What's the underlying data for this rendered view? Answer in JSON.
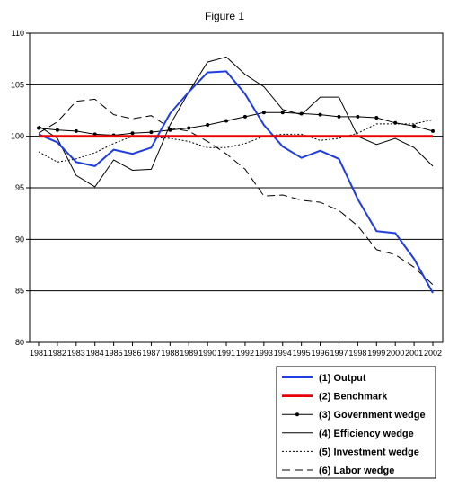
{
  "chart_data": {
    "type": "line",
    "title": "Figure 1",
    "xlabel": "",
    "ylabel": "",
    "ylim": [
      80,
      110
    ],
    "yticks": [
      "80",
      "85",
      "90",
      "95",
      "100",
      "105",
      "110"
    ],
    "grid": "horizontal",
    "legend_position": "bottom-right",
    "x": [
      "1981",
      "1982",
      "1983",
      "1984",
      "1985",
      "1986",
      "1987",
      "1988",
      "1989",
      "1990",
      "1991",
      "1992",
      "1993",
      "1994",
      "1995",
      "1996",
      "1997",
      "1998",
      "1999",
      "2000",
      "2001",
      "2002"
    ],
    "series": [
      {
        "name": "(1) Output",
        "color": "#1f3de0",
        "style": "solid",
        "values": [
          100.2,
          99.4,
          97.5,
          97.1,
          98.7,
          98.3,
          98.9,
          102.2,
          104.3,
          106.2,
          106.3,
          104.1,
          101.1,
          99.0,
          97.9,
          98.6,
          97.8,
          93.9,
          90.8,
          90.6,
          88.1,
          84.8
        ]
      },
      {
        "name": "(2) Benchmark",
        "color": "#e80000",
        "style": "thick",
        "values": [
          100,
          100,
          100,
          100,
          100,
          100,
          100,
          100,
          100,
          100,
          100,
          100,
          100,
          100,
          100,
          100,
          100,
          100,
          100,
          100,
          100,
          100
        ]
      },
      {
        "name": "(3) Government wedge",
        "color": "#000000",
        "style": "marker",
        "values": [
          100.8,
          100.6,
          100.5,
          100.2,
          100.1,
          100.3,
          100.4,
          100.6,
          100.8,
          101.1,
          101.5,
          101.9,
          102.3,
          102.3,
          102.2,
          102.1,
          101.9,
          101.9,
          101.8,
          101.3,
          101.0,
          100.5
        ]
      },
      {
        "name": "(4) Efficiency wedge",
        "color": "#000000",
        "style": "solid",
        "values": [
          101.0,
          99.8,
          96.2,
          95.1,
          97.7,
          96.7,
          96.8,
          101.1,
          104.3,
          107.2,
          107.7,
          106.0,
          104.8,
          102.6,
          102.1,
          103.8,
          103.8,
          100.0,
          99.2,
          99.8,
          98.9,
          97.1
        ]
      },
      {
        "name": "(5) Investment wedge",
        "color": "#000000",
        "style": "dotted",
        "values": [
          98.5,
          97.5,
          97.8,
          98.4,
          99.3,
          100.0,
          99.9,
          99.8,
          99.5,
          98.9,
          98.9,
          99.3,
          100.0,
          100.2,
          100.2,
          99.6,
          99.8,
          100.3,
          101.2,
          101.2,
          101.2,
          101.6
        ]
      },
      {
        "name": "(6) Labor wedge",
        "color": "#000000",
        "style": "dashed",
        "values": [
          100.3,
          101.4,
          103.4,
          103.6,
          102.1,
          101.7,
          102.0,
          100.8,
          100.5,
          99.5,
          98.3,
          96.8,
          94.2,
          94.3,
          93.8,
          93.6,
          92.8,
          91.3,
          89.0,
          88.5,
          87.3,
          85.6
        ]
      }
    ]
  }
}
